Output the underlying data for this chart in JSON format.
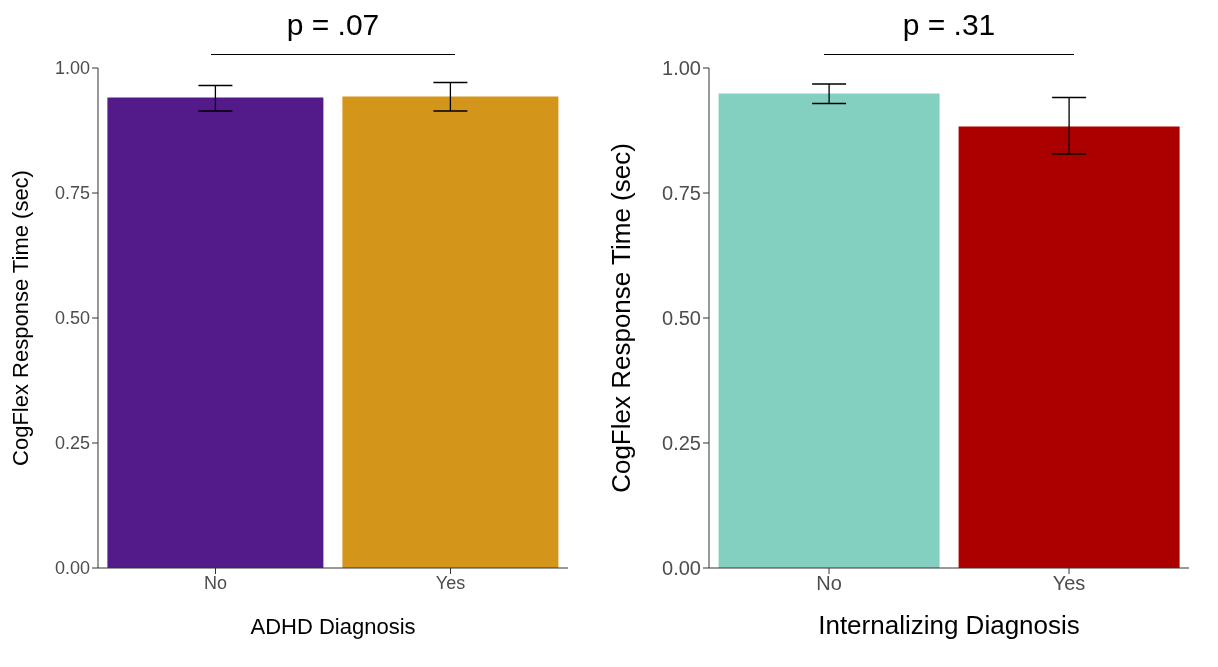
{
  "chart_data": [
    {
      "type": "bar",
      "categories": [
        "No",
        "Yes"
      ],
      "values": [
        0.941,
        0.943
      ],
      "colors": [
        "#531b8a",
        "#d4961a"
      ],
      "errors": [
        [
          0.914,
          0.965
        ],
        [
          0.914,
          0.971
        ]
      ],
      "xlabel": "ADHD Diagnosis",
      "ylabel": "CogFlex Response Time (sec)",
      "ylim": [
        0,
        1.0
      ],
      "yticks": [
        {
          "value": 0,
          "label": "0.00"
        },
        {
          "value": 0.25,
          "label": "0.25"
        },
        {
          "value": 0.5,
          "label": "0.50"
        },
        {
          "value": 0.75,
          "label": "0.75"
        },
        {
          "value": 1,
          "label": "1.00"
        }
      ],
      "grid": false,
      "annotations": [
        "p = .07"
      ]
    },
    {
      "type": "bar",
      "categories": [
        "No",
        "Yes"
      ],
      "values": [
        0.949,
        0.883
      ],
      "colors": [
        "#84d0c0",
        "#ab0000"
      ],
      "errors": [
        [
          0.929,
          0.968
        ],
        [
          0.828,
          0.941
        ]
      ],
      "xlabel": "Internalizing Diagnosis",
      "ylabel": "CogFlex Response Time (sec)",
      "ylim": [
        0,
        1.0
      ],
      "yticks": [
        {
          "value": 0,
          "label": "0.00"
        },
        {
          "value": 0.25,
          "label": "0.25"
        },
        {
          "value": 0.5,
          "label": "0.50"
        },
        {
          "value": 0.75,
          "label": "0.75"
        },
        {
          "value": 1,
          "label": "1.00"
        }
      ],
      "grid": false,
      "annotations": [
        "p = .31"
      ]
    }
  ]
}
